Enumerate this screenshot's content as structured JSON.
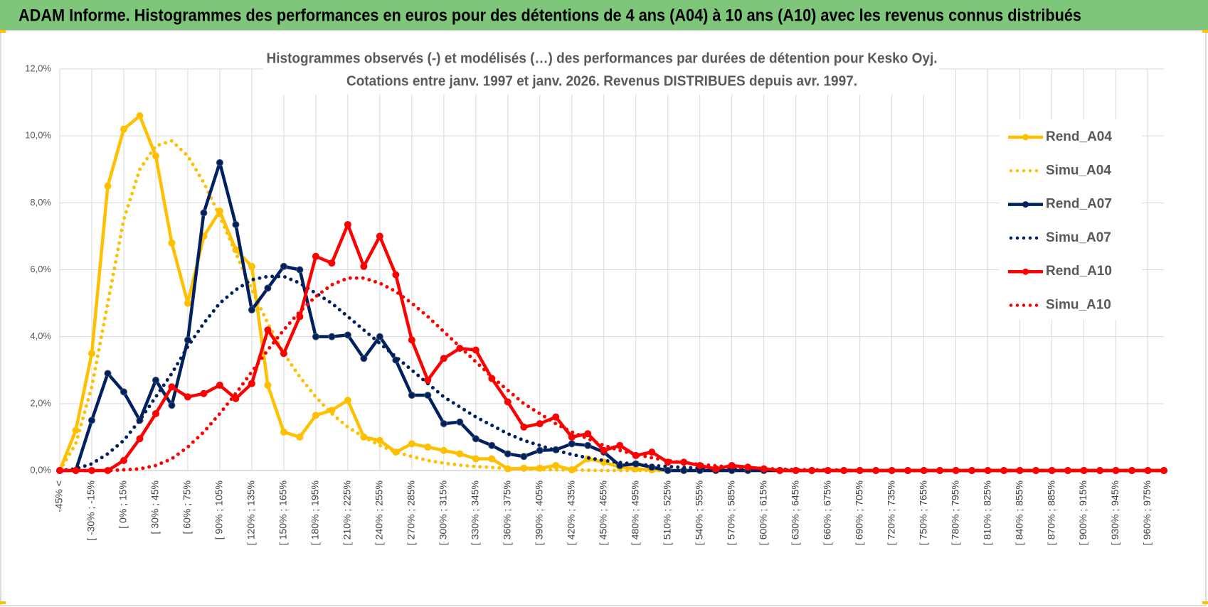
{
  "header": {
    "title": "ADAM Informe. Histogrammes des performances en euros pour des détentions de 4 ans (A04) à 10 ans (A10) avec les revenus connus distribués"
  },
  "chart_data": {
    "type": "line",
    "title": [
      "Histogrammes observés (-) et modélisés (…) des performances par durées de détention pour Kesko Oyj.",
      "Cotations entre janv. 1997 et janv. 2026. Revenus DISTRIBUES depuis avr. 1997."
    ],
    "categories": [
      "-45% <",
      null,
      "[ -30% ; -15%",
      null,
      "[ 0% ; 15%",
      null,
      "[ 30% ; 45%",
      null,
      "[ 60% ; 75%",
      null,
      "[ 90% ; 105%",
      null,
      "[ 120% ; 135%",
      null,
      "[ 150% ; 165%",
      null,
      "[ 180% ; 195%",
      null,
      "[ 210% ; 225%",
      null,
      "[ 240% ; 255%",
      null,
      "[ 270% ; 285%",
      null,
      "[ 300% ; 315%",
      null,
      "[ 330% ; 345%",
      null,
      "[ 360% ; 375%",
      null,
      "[ 390% ; 405%",
      null,
      "[ 420% ; 435%",
      null,
      "[ 450% ; 465%",
      null,
      "[ 480% ; 495%",
      null,
      "[ 510% ; 525%",
      null,
      "[ 540% ; 555%",
      null,
      "[ 570% ; 585%",
      null,
      "[ 600% ; 615%",
      null,
      "[ 630% ; 645%",
      null,
      "[ 660% ; 675%",
      null,
      "[ 690% ; 705%",
      null,
      "[ 720% ; 735%",
      null,
      "[ 750% ; 765%",
      null,
      "[ 780% ; 795%",
      null,
      "[ 810% ; 825%",
      null,
      "[ 840% ; 855%",
      null,
      "[ 870% ; 885%",
      null,
      "[ 900% ; 915%",
      null,
      "[ 930% ; 945%",
      null,
      "[ 960% ; 975%",
      null
    ],
    "series": [
      {
        "name": "Rend_A04",
        "color": "#ffc000",
        "line_style": "solid",
        "markers": true,
        "values": [
          0,
          1.2,
          3.5,
          8.5,
          10.2,
          10.6,
          9.4,
          6.8,
          5.0,
          7.0,
          7.75,
          6.6,
          6.1,
          2.55,
          1.15,
          1.0,
          1.65,
          1.8,
          2.1,
          1.0,
          0.9,
          0.55,
          0.8,
          0.7,
          0.6,
          0.5,
          0.35,
          0.35,
          0.05,
          0.07,
          0.07,
          0.15,
          0.02,
          0.35,
          0.25,
          0.1,
          0.05,
          0.02,
          0,
          0,
          0,
          0,
          0,
          0,
          0,
          0,
          0,
          0,
          0,
          0,
          0,
          0,
          0,
          0,
          0,
          0,
          0,
          0,
          0,
          0,
          0,
          0,
          0,
          0,
          0,
          0,
          0,
          0,
          0,
          0
        ]
      },
      {
        "name": "Simu_A04",
        "color": "#ffc000",
        "line_style": "dotted",
        "markers": false,
        "values": [
          0,
          0.8,
          2.5,
          5.0,
          7.5,
          9.0,
          9.7,
          9.85,
          9.4,
          8.6,
          7.6,
          6.5,
          5.4,
          4.4,
          3.5,
          2.8,
          2.2,
          1.7,
          1.3,
          1.0,
          0.75,
          0.55,
          0.42,
          0.3,
          0.22,
          0.16,
          0.12,
          0.09,
          0.06,
          0.05,
          0.03,
          0.02,
          0.02,
          0.01,
          0,
          0,
          0,
          0,
          0,
          0,
          0,
          0,
          0,
          0,
          0,
          0,
          0,
          0,
          0,
          0,
          0,
          0,
          0,
          0,
          0,
          0,
          0,
          0,
          0,
          0,
          0,
          0,
          0,
          0,
          0,
          0,
          0,
          0,
          0,
          0
        ]
      },
      {
        "name": "Rend_A07",
        "color": "#002060",
        "line_style": "solid",
        "markers": true,
        "values": [
          0,
          0,
          1.5,
          2.9,
          2.35,
          1.5,
          2.7,
          1.95,
          3.9,
          7.7,
          9.2,
          7.35,
          4.8,
          5.45,
          6.1,
          6.0,
          4.0,
          4.0,
          4.05,
          3.35,
          4.0,
          3.3,
          2.25,
          2.25,
          1.4,
          1.45,
          0.95,
          0.75,
          0.5,
          0.42,
          0.6,
          0.62,
          0.8,
          0.75,
          0.55,
          0.15,
          0.2,
          0.1,
          0,
          0,
          0,
          0,
          0,
          0,
          0,
          0,
          0,
          0,
          0,
          0,
          0,
          0,
          0,
          0,
          0,
          0,
          0,
          0,
          0,
          0,
          0,
          0,
          0,
          0,
          0,
          0,
          0,
          0,
          0,
          0
        ]
      },
      {
        "name": "Simu_A07",
        "color": "#002060",
        "line_style": "dotted",
        "markers": false,
        "values": [
          0,
          0.05,
          0.2,
          0.5,
          0.9,
          1.5,
          2.2,
          2.9,
          3.7,
          4.4,
          5.0,
          5.4,
          5.7,
          5.8,
          5.8,
          5.6,
          5.3,
          5.0,
          4.6,
          4.2,
          3.8,
          3.4,
          3.0,
          2.6,
          2.2,
          1.9,
          1.6,
          1.35,
          1.1,
          0.9,
          0.75,
          0.6,
          0.48,
          0.38,
          0.3,
          0.24,
          0.19,
          0.15,
          0.12,
          0.09,
          0.07,
          0.05,
          0.04,
          0.03,
          0.02,
          0.02,
          0.01,
          0,
          0,
          0,
          0,
          0,
          0,
          0,
          0,
          0,
          0,
          0,
          0,
          0,
          0,
          0,
          0,
          0,
          0,
          0,
          0,
          0,
          0,
          0
        ]
      },
      {
        "name": "Rend_A10",
        "color": "#ff0000",
        "line_style": "solid",
        "markers": true,
        "values": [
          0,
          0,
          0,
          0,
          0.3,
          0.95,
          1.7,
          2.5,
          2.2,
          2.3,
          2.55,
          2.15,
          2.6,
          4.2,
          3.5,
          4.6,
          6.4,
          6.2,
          7.35,
          6.1,
          7.0,
          5.85,
          3.9,
          2.7,
          3.35,
          3.65,
          3.6,
          2.75,
          2.05,
          1.3,
          1.4,
          1.6,
          1.0,
          1.1,
          0.6,
          0.75,
          0.45,
          0.55,
          0.25,
          0.25,
          0.15,
          0.05,
          0.15,
          0.1,
          0.05,
          0,
          0,
          0,
          0,
          0,
          0,
          0,
          0,
          0,
          0,
          0,
          0,
          0,
          0,
          0,
          0,
          0,
          0,
          0,
          0,
          0,
          0,
          0,
          0,
          0
        ]
      },
      {
        "name": "Simu_A10",
        "color": "#ff0000",
        "line_style": "dotted",
        "markers": false,
        "values": [
          0,
          0,
          0,
          0,
          0.02,
          0.05,
          0.15,
          0.35,
          0.7,
          1.15,
          1.7,
          2.3,
          2.95,
          3.6,
          4.2,
          4.75,
          5.2,
          5.55,
          5.75,
          5.75,
          5.6,
          5.35,
          5.0,
          4.6,
          4.15,
          3.7,
          3.25,
          2.8,
          2.4,
          2.0,
          1.7,
          1.4,
          1.15,
          0.95,
          0.75,
          0.6,
          0.48,
          0.38,
          0.3,
          0.23,
          0.18,
          0.14,
          0.1,
          0.08,
          0.06,
          0.04,
          0.03,
          0.02,
          0.02,
          0.01,
          0,
          0,
          0,
          0,
          0,
          0,
          0,
          0,
          0,
          0,
          0,
          0,
          0,
          0,
          0,
          0,
          0,
          0,
          0,
          0
        ]
      }
    ],
    "ylim": [
      0,
      12
    ],
    "yticks": [
      {
        "value": 0,
        "label": "0,0%"
      },
      {
        "value": 2,
        "label": "2,0%"
      },
      {
        "value": 4,
        "label": "4,0%"
      },
      {
        "value": 6,
        "label": "6,0%"
      },
      {
        "value": 8,
        "label": "8,0%"
      },
      {
        "value": 10,
        "label": "10,0%"
      },
      {
        "value": 12,
        "label": "12,0%"
      }
    ],
    "grid": true,
    "legend": "right"
  }
}
